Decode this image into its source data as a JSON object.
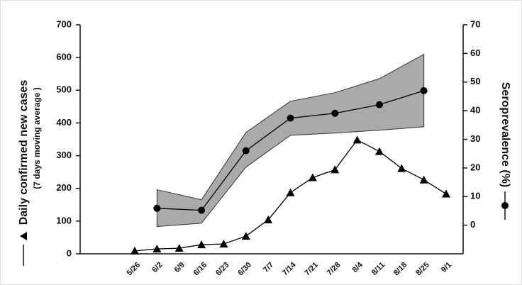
{
  "chart_data": {
    "type": "line",
    "categories": [
      "5/26",
      "6/2",
      "6/9",
      "6/16",
      "6/23",
      "6/30",
      "7/7",
      "7/14",
      "7/21",
      "7/28",
      "8/4",
      "8/11",
      "8/18",
      "8/25",
      "9/1"
    ],
    "ylabel": "Daily confirmed new cases",
    "ysublabel": "(7 days moving  average )",
    "y2label": "Seroprevalence (%)",
    "ylim": [
      0,
      700
    ],
    "yticks": [
      0,
      100,
      200,
      300,
      400,
      500,
      600,
      700
    ],
    "y2lim": [
      -10,
      70
    ],
    "y2ticks": [
      0,
      10,
      20,
      30,
      40,
      50,
      60,
      70
    ],
    "series": [
      {
        "marker": "triangle",
        "color": "#000000",
        "values": [
          9,
          15,
          17,
          28,
          30,
          54,
          104,
          187,
          233,
          257,
          348,
          313,
          261,
          226,
          183
        ]
      },
      {
        "marker": "circle",
        "color": "#000000",
        "axis": "y2",
        "values": [
          null,
          5.9,
          null,
          5.2,
          null,
          26,
          null,
          37.4,
          null,
          39.1,
          null,
          42.1,
          null,
          47,
          null
        ]
      }
    ],
    "band": {
      "axis": "y2",
      "color": "#aaaaaa",
      "upper": [
        null,
        12.4,
        null,
        8.9,
        null,
        32.4,
        null,
        43.3,
        null,
        46.3,
        null,
        51.2,
        null,
        59.7,
        null
      ],
      "lower": [
        null,
        -0.5,
        null,
        0.7,
        null,
        20.3,
        null,
        31.4,
        null,
        32.2,
        null,
        33.2,
        null,
        34.4,
        null
      ]
    }
  }
}
